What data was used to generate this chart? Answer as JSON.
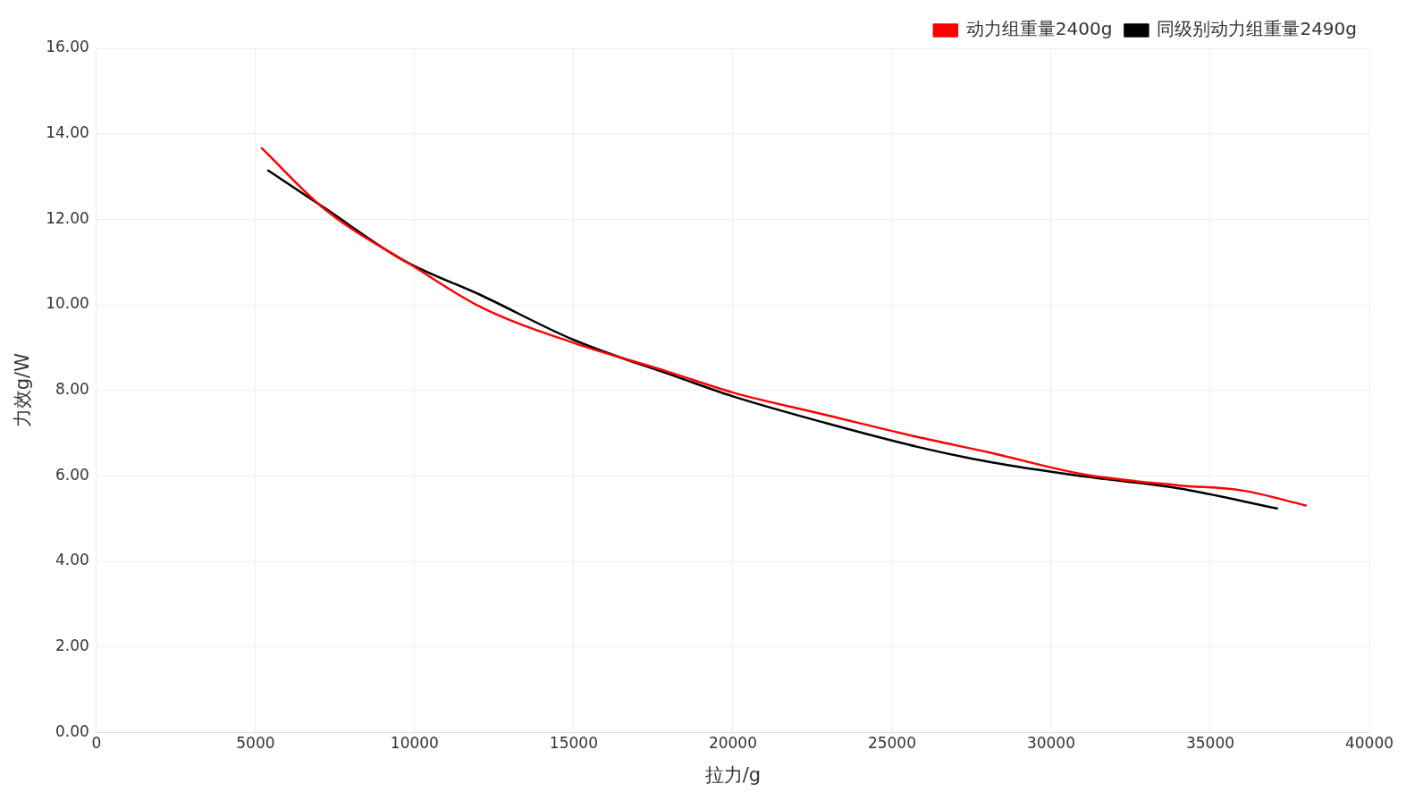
{
  "chart_data": {
    "type": "line",
    "xlabel": "拉力/g",
    "ylabel": "力效g/W",
    "xlim": [
      0,
      40000
    ],
    "xticks": [
      0,
      5000,
      10000,
      15000,
      20000,
      25000,
      30000,
      35000,
      40000
    ],
    "ylim": [
      0,
      16
    ],
    "yticks": [
      {
        "value": 0,
        "label": "0.00"
      },
      {
        "value": 2,
        "label": "2.00"
      },
      {
        "value": 4,
        "label": "4.00"
      },
      {
        "value": 6,
        "label": "6.00"
      },
      {
        "value": 8,
        "label": "8.00"
      },
      {
        "value": 10,
        "label": "10.00"
      },
      {
        "value": 12,
        "label": "12.00"
      },
      {
        "value": 14,
        "label": "14.00"
      },
      {
        "value": 16,
        "label": "16.00"
      }
    ],
    "grid": true,
    "legend": "top right",
    "marker": "none",
    "line_style": "solid",
    "series": [
      {
        "name": "动力组重量2400g",
        "color": "#ff0000",
        "x": [
          5200,
          7200,
          9900,
          12100,
          15000,
          17900,
          20000,
          22900,
          25800,
          28100,
          31000,
          34000,
          36000,
          38000
        ],
        "values": [
          13.66,
          12.22,
          10.93,
          9.94,
          9.11,
          8.45,
          7.95,
          7.43,
          6.91,
          6.54,
          6.04,
          5.78,
          5.66,
          5.31
        ]
      },
      {
        "name": "同级别动力组重量2490g",
        "color": "#000000",
        "x": [
          5400,
          7200,
          9600,
          12100,
          15000,
          18300,
          20000,
          22900,
          25800,
          28100,
          31000,
          34000,
          37100
        ],
        "values": [
          13.14,
          12.25,
          11.06,
          10.22,
          9.18,
          8.3,
          7.86,
          7.24,
          6.68,
          6.32,
          5.99,
          5.71,
          5.24
        ]
      }
    ]
  }
}
